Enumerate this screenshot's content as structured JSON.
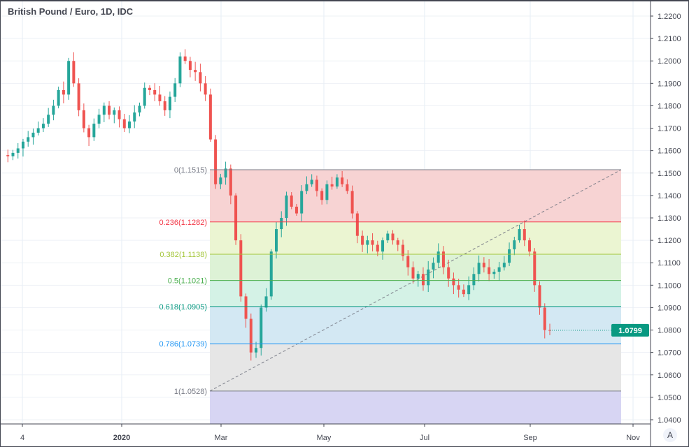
{
  "header": {
    "title": "British Pound / Euro, 1D, IDC"
  },
  "controls": {
    "auto_scale_label": "A"
  },
  "chart_data": {
    "type": "candlestick",
    "title": "British Pound / Euro, 1D, IDC",
    "ylim": [
      1.0365,
      1.2265
    ],
    "y_ticks": [
      "1.2200",
      "1.2100",
      "1.2000",
      "1.1900",
      "1.1800",
      "1.1700",
      "1.1600",
      "1.1500",
      "1.1400",
      "1.1300",
      "1.1200",
      "1.1100",
      "1.1000",
      "1.0900",
      "1.0800",
      "1.0700",
      "1.0600",
      "1.0500",
      "1.0400"
    ],
    "x_ticks": [
      "4",
      "2020",
      "Mar",
      "May",
      "Jul",
      "Sep",
      "Nov"
    ],
    "grid": true,
    "last_price": "1.0799",
    "colors": {
      "up": "#26a69a",
      "down": "#ef5350",
      "last_price": "#089981"
    },
    "closes": [
      1.158,
      1.1575,
      1.159,
      1.161,
      1.164,
      1.166,
      1.168,
      1.17,
      1.172,
      1.176,
      1.18,
      1.187,
      1.185,
      1.2,
      1.19,
      1.178,
      1.17,
      1.166,
      1.172,
      1.176,
      1.18,
      1.176,
      1.178,
      1.174,
      1.17,
      1.173,
      1.177,
      1.18,
      1.188,
      1.187,
      1.185,
      1.182,
      1.178,
      1.184,
      1.19,
      1.202,
      1.2,
      1.196,
      1.195,
      1.19,
      1.185,
      1.165,
      1.145,
      1.148,
      1.152,
      1.14,
      1.12,
      1.095,
      1.085,
      1.07,
      1.072,
      1.09,
      1.095,
      1.115,
      1.125,
      1.13,
      1.14,
      1.135,
      1.132,
      1.142,
      1.145,
      1.147,
      1.142,
      1.138,
      1.145,
      1.144,
      1.148,
      1.145,
      1.142,
      1.132,
      1.122,
      1.118,
      1.12,
      1.118,
      1.115,
      1.12,
      1.123,
      1.12,
      1.118,
      1.113,
      1.108,
      1.103,
      1.105,
      1.1,
      1.107,
      1.11,
      1.115,
      1.108,
      1.103,
      1.1,
      1.098,
      1.096,
      1.1,
      1.105,
      1.11,
      1.108,
      1.105,
      1.106,
      1.108,
      1.11,
      1.116,
      1.12,
      1.125,
      1.12,
      1.115,
      1.1,
      1.09,
      1.08,
      1.0799
    ],
    "fibonacci": {
      "levels": [
        {
          "label": "0(1.1515)",
          "price": 1.1515,
          "line": "#787b86",
          "fill": "#f7d3d3"
        },
        {
          "label": "0.236(1.1282)",
          "price": 1.1282,
          "line": "#f23645",
          "fill": "#ebf5d2"
        },
        {
          "label": "0.382(1.1138)",
          "price": 1.1138,
          "line": "#a4c639",
          "fill": "#ddf2d6"
        },
        {
          "label": "0.5(1.1021)",
          "price": 1.1021,
          "line": "#4caf50",
          "fill": "#d4f2e6"
        },
        {
          "label": "0.618(1.0905)",
          "price": 1.0905,
          "line": "#089981",
          "fill": "#d3e8f3"
        },
        {
          "label": "0.786(1.0739)",
          "price": 1.0739,
          "line": "#2196f3",
          "fill": "#e6e6e6"
        },
        {
          "label": "1(1.0528)",
          "price": 1.0528,
          "line": "#787b86",
          "fill": "#d7d5f3"
        }
      ]
    }
  }
}
